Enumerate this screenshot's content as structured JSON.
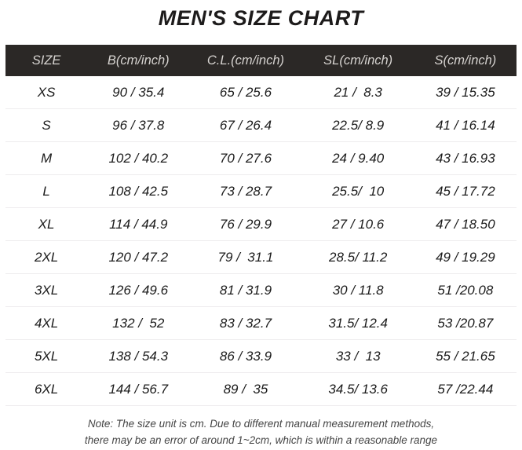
{
  "title": "MEN'S SIZE CHART",
  "chart_data": {
    "type": "table",
    "title": "MEN'S SIZE CHART",
    "columns": [
      "SIZE",
      "B(cm/inch)",
      "C.L.(cm/inch)",
      "SL(cm/inch)",
      "S(cm/inch)"
    ],
    "rows": [
      [
        "XS",
        "90 / 35.4",
        "65 / 25.6",
        "21 /  8.3",
        "39 / 15.35"
      ],
      [
        "S",
        "96 / 37.8",
        "67 / 26.4",
        "22.5/ 8.9",
        "41 / 16.14"
      ],
      [
        "M",
        "102 / 40.2",
        "70 / 27.6",
        "24 / 9.40",
        "43 / 16.93"
      ],
      [
        "L",
        "108 / 42.5",
        "73 / 28.7",
        "25.5/  10",
        "45 / 17.72"
      ],
      [
        "XL",
        "114 / 44.9",
        "76 / 29.9",
        "27 / 10.6",
        "47 / 18.50"
      ],
      [
        "2XL",
        "120 / 47.2",
        "79 /  31.1",
        "28.5/ 11.2",
        "49 / 19.29"
      ],
      [
        "3XL",
        "126 / 49.6",
        "81 / 31.9",
        "30 / 11.8",
        "51 /20.08"
      ],
      [
        "4XL",
        "132 /  52",
        "83 / 32.7",
        "31.5/ 12.4",
        "53 /20.87"
      ],
      [
        "5XL",
        "138 / 54.3",
        "86 / 33.9",
        "33 /  13",
        "55 / 21.65"
      ],
      [
        "6XL",
        "144 / 56.7",
        "89 /  35",
        "34.5/ 13.6",
        "57 /22.44"
      ]
    ]
  },
  "note": {
    "line1": "Note: The size unit is cm. Due to different manual measurement methods,",
    "line2": "there may be an error of around 1~2cm, which is within a reasonable range"
  },
  "colors": {
    "header_bg": "#2b2826",
    "header_text": "#d6d3d0",
    "body_text": "#1b1b1b",
    "separator": "#eeecee",
    "note_text": "#454545",
    "background": "#ffffff"
  }
}
